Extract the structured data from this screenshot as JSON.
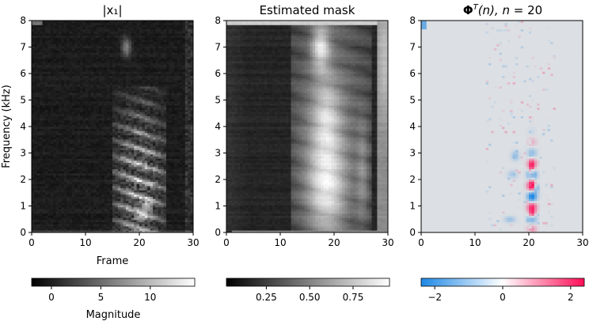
{
  "chart_data": {
    "type": "heatmap",
    "shared": {
      "xlim": [
        0,
        30
      ],
      "ylim": [
        0,
        8
      ],
      "x_ticks": [
        0,
        10,
        20,
        30
      ],
      "y_ticks": [
        0,
        1,
        2,
        3,
        4,
        5,
        6,
        7,
        8
      ],
      "xlabel": "Frame",
      "ylabel": "Frequency (kHz)"
    },
    "panels": [
      {
        "id": "x1",
        "title": "|x₁|",
        "colormap": "gray",
        "colorbar": {
          "ticks": [
            0,
            5,
            10
          ],
          "range": [
            -2,
            14.5
          ],
          "label": "Magnitude"
        },
        "description_of_features": {
          "speech_frames": [
            15,
            25
          ],
          "peak_frame": 21,
          "peak_freqs_khz": [
            0.5,
            1.0,
            1.6,
            2.2,
            2.9
          ]
        }
      },
      {
        "id": "mask",
        "title": "Estimated mask",
        "colormap": "gray",
        "colorbar": {
          "ticks": [
            0.25,
            0.5,
            0.75
          ],
          "tick_labels": [
            "0.25",
            "0.50",
            "0.75"
          ],
          "range": [
            0.02,
            0.96
          ],
          "label": ""
        },
        "description_of_features": {
          "bright_region_frames": [
            13,
            27
          ],
          "bright_blob_center": [
            17.5,
            7.0
          ]
        }
      },
      {
        "id": "phi",
        "title": "Φᵀ(n), n = 20",
        "colormap": "diverging-blue-white-red",
        "colorbar": {
          "ticks": [
            -2,
            0,
            2
          ],
          "tick_labels": [
            "−2",
            "0",
            "2"
          ],
          "range": [
            -2.4,
            2.4
          ],
          "label": ""
        },
        "description_of_features": {
          "active_frame": 20.5,
          "activity_freq_khz": [
            0.5,
            3.0
          ]
        }
      }
    ],
    "colors": {
      "diverging_low": "#1e88e5",
      "diverging_mid": "#ffffff",
      "diverging_high": "#ff0d57",
      "background_neutral": "#dcdfe3"
    }
  }
}
